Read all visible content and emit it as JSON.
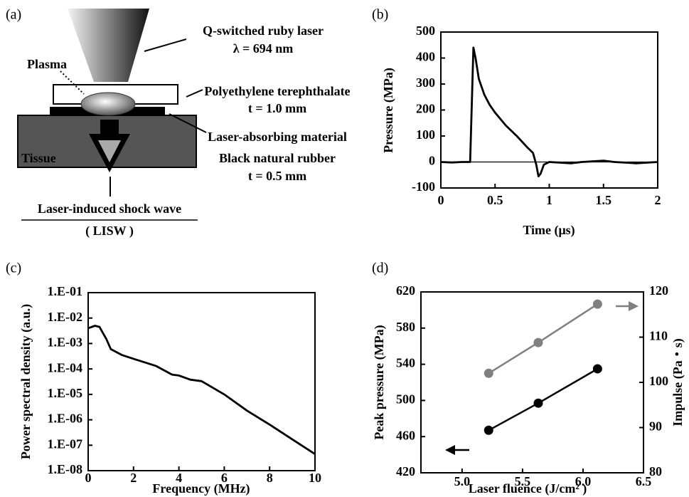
{
  "panel_labels": [
    "(a)",
    "(b)",
    "(c)",
    "(d)"
  ],
  "diagram": {
    "labels": [
      "Q-switched ruby laser",
      "λ = 694 nm",
      "Plasma",
      "Polyethylene terephthalate",
      "t = 1.0 mm",
      "Laser-absorbing material",
      "Black natural rubber",
      "t = 0.5 mm",
      "Tissue",
      "Laser-induced shock wave",
      "( LISW )"
    ]
  },
  "chart_data": [
    {
      "type": "line",
      "xlabel": "Time (μs)",
      "ylabel": "Pressure (MPa)",
      "x": [
        0,
        0.1,
        0.2,
        0.27,
        0.3,
        0.32,
        0.35,
        0.4,
        0.45,
        0.5,
        0.6,
        0.7,
        0.8,
        0.85,
        0.88,
        0.9,
        0.92,
        0.95,
        1.0,
        1.2,
        1.3,
        1.5,
        1.6,
        1.8,
        2.0
      ],
      "series": [
        {
          "color": "#000000",
          "values": [
            0,
            -2,
            0,
            0,
            440,
            400,
            320,
            260,
            220,
            190,
            140,
            100,
            55,
            35,
            -10,
            -55,
            -45,
            -10,
            0,
            -5,
            0,
            5,
            0,
            -5,
            0
          ]
        }
      ],
      "xlim": [
        0,
        2
      ],
      "xticks": [
        0,
        0.5,
        1,
        1.5,
        2
      ],
      "ylim": [
        -100,
        500
      ],
      "yticks": [
        -100,
        0,
        100,
        200,
        300,
        400,
        500
      ],
      "reference_line": 0
    },
    {
      "type": "line",
      "xlabel": "Frequency (MHz)",
      "ylabel": "Power spectral density (a.u.)",
      "x": [
        0,
        0.3,
        0.5,
        0.8,
        1,
        1.5,
        2,
        3,
        3.7,
        4,
        4.5,
        5,
        6,
        7,
        8,
        9,
        10
      ],
      "series": [
        {
          "color": "#000000",
          "values": [
            0.004,
            0.005,
            0.0045,
            0.0015,
            0.0006,
            0.00035,
            0.00025,
            0.00013,
            6e-05,
            5.5e-05,
            3.8e-05,
            3.3e-05,
            1e-05,
            2.3e-06,
            6.5e-07,
            1.7e-07,
            4.5e-08
          ]
        }
      ],
      "xlim": [
        0,
        10
      ],
      "xticks": [
        0,
        2,
        4,
        6,
        8,
        10
      ],
      "ylim": [
        1e-08,
        0.1
      ],
      "log_scale_y": true,
      "yticks": [
        {
          "value": 1e-08,
          "label": "1.E-08"
        },
        {
          "value": 1e-07,
          "label": "1.E-07"
        },
        {
          "value": 1e-06,
          "label": "1.E-06"
        },
        {
          "value": 1e-05,
          "label": "1.E-05"
        },
        {
          "value": 0.0001,
          "label": "1.E-04"
        },
        {
          "value": 0.001,
          "label": "1.E-03"
        },
        {
          "value": 0.01,
          "label": "1.E-02"
        },
        {
          "value": 0.1,
          "label": "1.E-01"
        }
      ]
    },
    {
      "type": "line",
      "xlabel": "Laser fluence (J/cm² )",
      "ylabel": "Peak pressure (MPa)",
      "y2label": "Impulse (Pa・s)",
      "x": [
        5.22,
        5.63,
        6.12
      ],
      "marker": "circle",
      "series": [
        {
          "color": "#000000",
          "values": [
            467,
            497,
            535
          ]
        },
        {
          "color": "#808080",
          "axis": "y2",
          "values": [
            102,
            108.8,
            117.3
          ]
        }
      ],
      "xlim": [
        4.66,
        6.5
      ],
      "xticks": [
        {
          "value": 5,
          "label": "5.0"
        },
        5.5,
        {
          "value": 6,
          "label": "6.0"
        },
        6.5
      ],
      "ylim": [
        420,
        620
      ],
      "yticks": [
        420,
        460,
        500,
        540,
        580,
        620
      ],
      "y2lim": [
        80,
        120
      ],
      "y2ticks": [
        80,
        90,
        100,
        110,
        120
      ]
    }
  ]
}
